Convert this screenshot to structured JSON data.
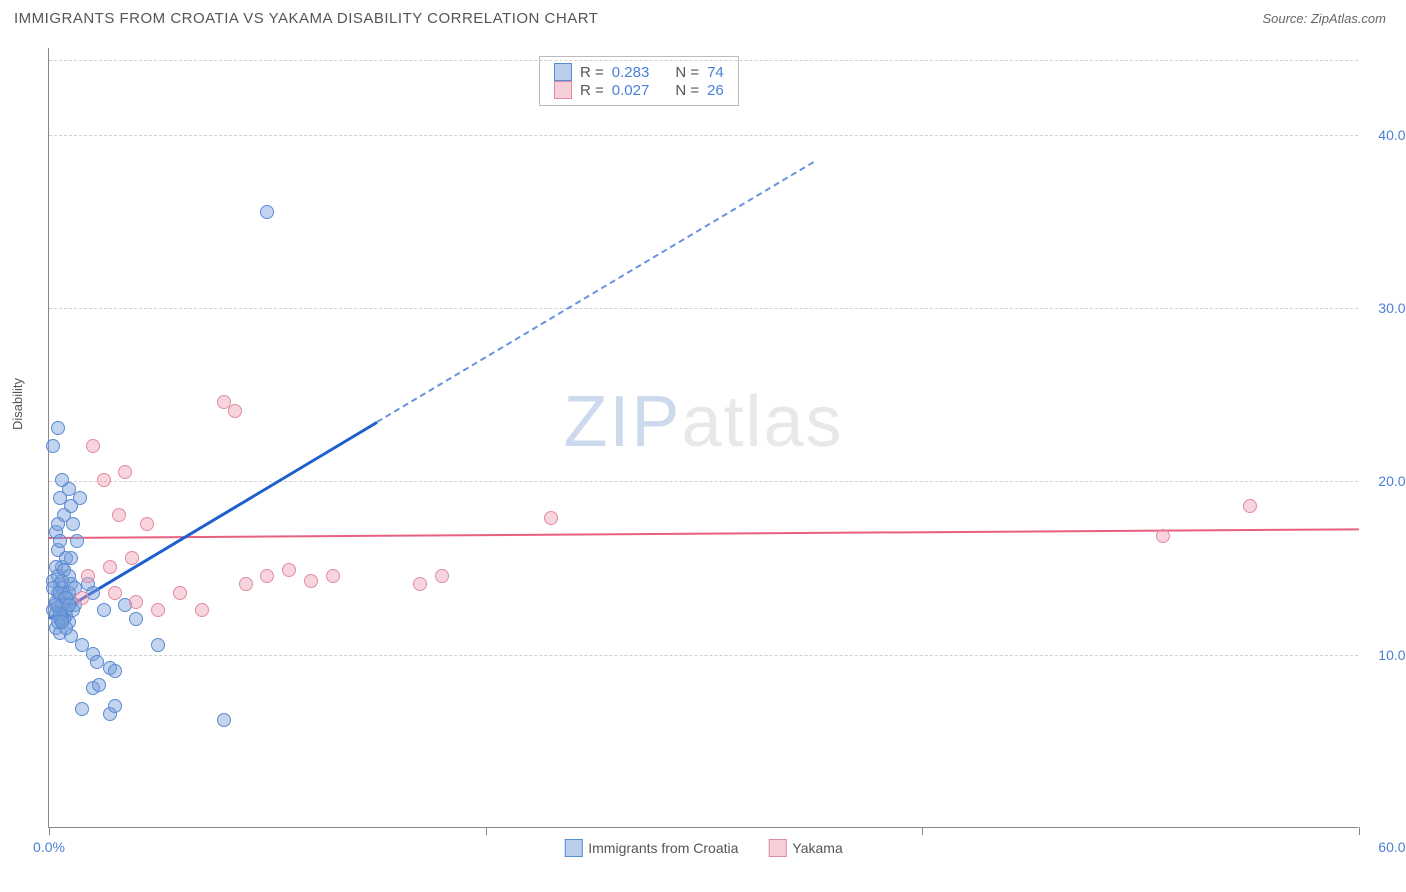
{
  "header": {
    "title": "IMMIGRANTS FROM CROATIA VS YAKAMA DISABILITY CORRELATION CHART",
    "source_prefix": "Source: ",
    "source_name": "ZipAtlas.com"
  },
  "chart": {
    "type": "scatter",
    "ylabel": "Disability",
    "xlim": [
      0,
      60
    ],
    "ylim": [
      0,
      45
    ],
    "xticks": [
      0,
      20,
      40,
      60
    ],
    "xtick_labels": [
      "0.0%",
      "",
      "",
      "60.0%"
    ],
    "yticks": [
      10,
      20,
      30,
      40
    ],
    "ytick_labels": [
      "10.0%",
      "20.0%",
      "30.0%",
      "40.0%"
    ],
    "background_color": "#ffffff",
    "grid_color": "#d0d0d0",
    "marker_size": 14,
    "watermark": {
      "zip": "ZIP",
      "atlas": "atlas"
    },
    "series": [
      {
        "name": "Immigrants from Croatia",
        "color_fill": "rgba(120,160,220,0.45)",
        "color_border": "#5b8bd0",
        "trend_color": "#1e5fd0",
        "trend": {
          "x1": 0,
          "y1": 12.2,
          "x2": 15,
          "y2": 23.5,
          "extend_x": 35,
          "extend_y": 38.5
        },
        "points": [
          [
            0.2,
            12.5
          ],
          [
            0.3,
            13.0
          ],
          [
            0.5,
            12.0
          ],
          [
            0.4,
            13.5
          ],
          [
            0.6,
            12.8
          ],
          [
            0.3,
            11.5
          ],
          [
            0.7,
            13.2
          ],
          [
            0.5,
            14.0
          ],
          [
            0.8,
            12.2
          ],
          [
            0.4,
            12.7
          ],
          [
            0.6,
            13.8
          ],
          [
            0.9,
            11.8
          ],
          [
            0.2,
            14.2
          ],
          [
            0.3,
            12.3
          ],
          [
            0.7,
            12.0
          ],
          [
            0.5,
            11.2
          ],
          [
            1.0,
            13.0
          ],
          [
            0.8,
            12.5
          ],
          [
            0.6,
            15.0
          ],
          [
            1.2,
            12.8
          ],
          [
            0.4,
            16.0
          ],
          [
            0.9,
            14.5
          ],
          [
            0.3,
            17.0
          ],
          [
            0.7,
            18.0
          ],
          [
            1.0,
            18.5
          ],
          [
            1.3,
            16.5
          ],
          [
            0.5,
            19.0
          ],
          [
            1.1,
            17.5
          ],
          [
            1.4,
            19.0
          ],
          [
            0.2,
            22.0
          ],
          [
            0.4,
            23.0
          ],
          [
            1.8,
            14.0
          ],
          [
            2.0,
            13.5
          ],
          [
            2.5,
            12.5
          ],
          [
            0.8,
            15.5
          ],
          [
            1.0,
            11.0
          ],
          [
            1.5,
            10.5
          ],
          [
            2.0,
            10.0
          ],
          [
            2.2,
            9.5
          ],
          [
            2.8,
            9.2
          ],
          [
            3.0,
            9.0
          ],
          [
            3.5,
            12.8
          ],
          [
            4.0,
            12.0
          ],
          [
            5.0,
            10.5
          ],
          [
            2.0,
            8.0
          ],
          [
            2.3,
            8.2
          ],
          [
            1.5,
            6.8
          ],
          [
            2.8,
            6.5
          ],
          [
            3.0,
            7.0
          ],
          [
            8.0,
            6.2
          ],
          [
            0.9,
            19.5
          ],
          [
            0.6,
            20.0
          ],
          [
            10.0,
            35.5
          ],
          [
            0.2,
            13.8
          ],
          [
            0.3,
            15.0
          ],
          [
            0.5,
            13.5
          ],
          [
            0.4,
            14.5
          ],
          [
            0.6,
            12.0
          ],
          [
            0.8,
            11.5
          ],
          [
            0.9,
            13.5
          ],
          [
            1.0,
            14.0
          ],
          [
            1.1,
            12.5
          ],
          [
            1.2,
            13.8
          ],
          [
            0.7,
            14.8
          ],
          [
            0.5,
            12.3
          ],
          [
            0.4,
            11.8
          ],
          [
            0.3,
            12.8
          ],
          [
            0.6,
            14.2
          ],
          [
            0.8,
            13.2
          ],
          [
            0.9,
            12.8
          ],
          [
            1.0,
            15.5
          ],
          [
            0.5,
            16.5
          ],
          [
            0.4,
            17.5
          ],
          [
            0.6,
            11.8
          ]
        ]
      },
      {
        "name": "Yakama",
        "color_fill": "rgba(240,160,180,0.45)",
        "color_border": "#e08ba5",
        "trend_color": "#e8607f",
        "trend": {
          "x1": 0,
          "y1": 16.8,
          "x2": 60,
          "y2": 17.3
        },
        "points": [
          [
            1.5,
            13.2
          ],
          [
            2.0,
            22.0
          ],
          [
            2.5,
            20.0
          ],
          [
            3.0,
            13.5
          ],
          [
            3.2,
            18.0
          ],
          [
            3.5,
            20.5
          ],
          [
            4.0,
            13.0
          ],
          [
            4.5,
            17.5
          ],
          [
            5.0,
            12.5
          ],
          [
            6.0,
            13.5
          ],
          [
            7.0,
            12.5
          ],
          [
            8.0,
            24.5
          ],
          [
            8.5,
            24.0
          ],
          [
            9.0,
            14.0
          ],
          [
            10.0,
            14.5
          ],
          [
            11.0,
            14.8
          ],
          [
            12.0,
            14.2
          ],
          [
            13.0,
            14.5
          ],
          [
            18.0,
            14.5
          ],
          [
            17.0,
            14.0
          ],
          [
            23.0,
            17.8
          ],
          [
            51.0,
            16.8
          ],
          [
            55.0,
            18.5
          ],
          [
            1.8,
            14.5
          ],
          [
            2.8,
            15.0
          ],
          [
            3.8,
            15.5
          ]
        ]
      }
    ],
    "legend_top": {
      "rows": [
        {
          "swatch": "blue",
          "r_label": "R =",
          "r_val": "0.283",
          "n_label": "N =",
          "n_val": "74"
        },
        {
          "swatch": "pink",
          "r_label": "R =",
          "r_val": "0.027",
          "n_label": "N =",
          "n_val": "26"
        }
      ]
    },
    "legend_bottom": {
      "items": [
        {
          "swatch": "blue",
          "label": "Immigrants from Croatia"
        },
        {
          "swatch": "pink",
          "label": "Yakama"
        }
      ]
    }
  }
}
